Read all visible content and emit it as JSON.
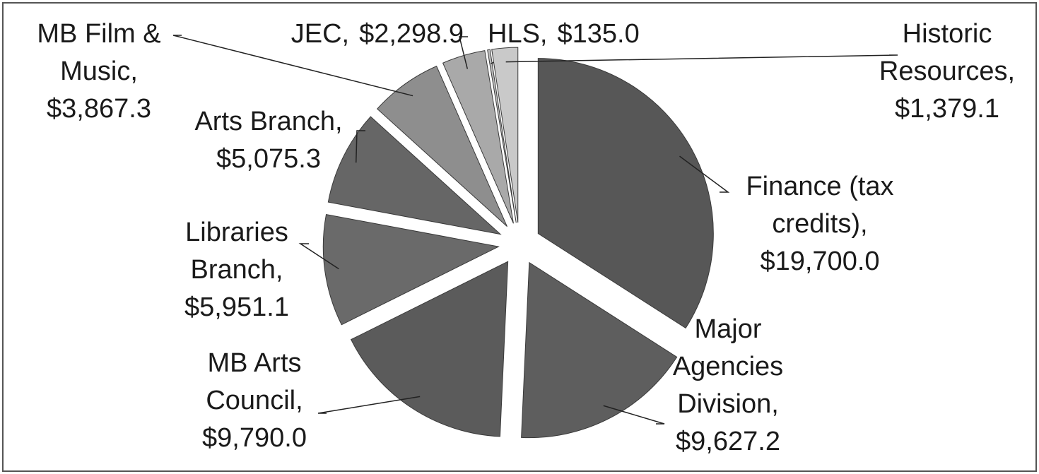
{
  "chart_data": {
    "type": "pie",
    "categories": [
      "Finance (tax credits),",
      "Major Agencies Division,",
      "MB Arts Council,",
      "Libraries Branch,",
      "Arts Branch,",
      "MB Film & Music,",
      "JEC,",
      "HLS,",
      "Historic Resources,"
    ],
    "values": [
      19700.0,
      9627.2,
      9790.0,
      5951.1,
      5075.3,
      3867.3,
      2298.9,
      135.0,
      1379.1
    ],
    "value_labels": [
      "$19,700.0",
      "$9,627.2",
      "$9,790.0",
      "$5,951.1",
      "$5,075.3",
      "$3,867.3",
      "$2,298.9",
      "$135.0",
      "$1,379.1"
    ],
    "colors": [
      "#575757",
      "#5e5e5e",
      "#5b5b5b",
      "#6a6a6a",
      "#666666",
      "#8e8e8e",
      "#a9a9a9",
      "#bdbdbd",
      "#c9c9c9"
    ]
  }
}
